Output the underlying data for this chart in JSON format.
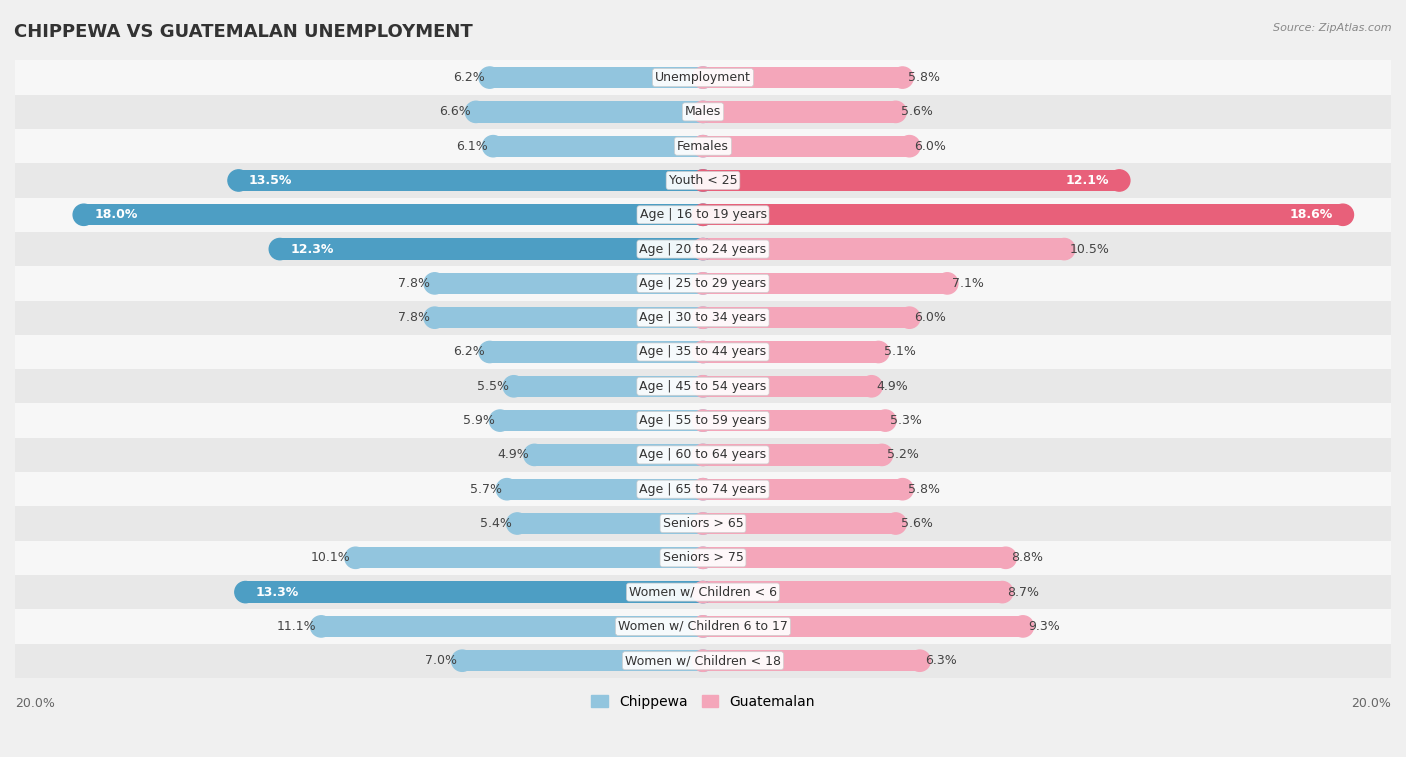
{
  "title": "CHIPPEWA VS GUATEMALAN UNEMPLOYMENT",
  "source": "Source: ZipAtlas.com",
  "categories": [
    "Unemployment",
    "Males",
    "Females",
    "Youth < 25",
    "Age | 16 to 19 years",
    "Age | 20 to 24 years",
    "Age | 25 to 29 years",
    "Age | 30 to 34 years",
    "Age | 35 to 44 years",
    "Age | 45 to 54 years",
    "Age | 55 to 59 years",
    "Age | 60 to 64 years",
    "Age | 65 to 74 years",
    "Seniors > 65",
    "Seniors > 75",
    "Women w/ Children < 6",
    "Women w/ Children 6 to 17",
    "Women w/ Children < 18"
  ],
  "chippewa": [
    6.2,
    6.6,
    6.1,
    13.5,
    18.0,
    12.3,
    7.8,
    7.8,
    6.2,
    5.5,
    5.9,
    4.9,
    5.7,
    5.4,
    10.1,
    13.3,
    11.1,
    7.0
  ],
  "guatemalan": [
    5.8,
    5.6,
    6.0,
    12.1,
    18.6,
    10.5,
    7.1,
    6.0,
    5.1,
    4.9,
    5.3,
    5.2,
    5.8,
    5.6,
    8.8,
    8.7,
    9.3,
    6.3
  ],
  "chippewa_color": "#92c5de",
  "guatemalan_color": "#f4a6ba",
  "chippewa_color_highlight": "#4d9ec4",
  "guatemalan_color_highlight": "#e8607a",
  "bar_height": 0.62,
  "xlim": 20.0,
  "bg_color": "#f0f0f0",
  "row_even_color": "#f7f7f7",
  "row_odd_color": "#e8e8e8",
  "label_color_normal": "#555555",
  "label_color_bold": "#ffffff",
  "center_label_color": "#555555",
  "legend_chippewa": "Chippewa",
  "legend_guatemalan": "Guatemalan",
  "axis_label": "20.0%",
  "highlight_threshold_c": 12.0,
  "highlight_threshold_g": 12.0
}
